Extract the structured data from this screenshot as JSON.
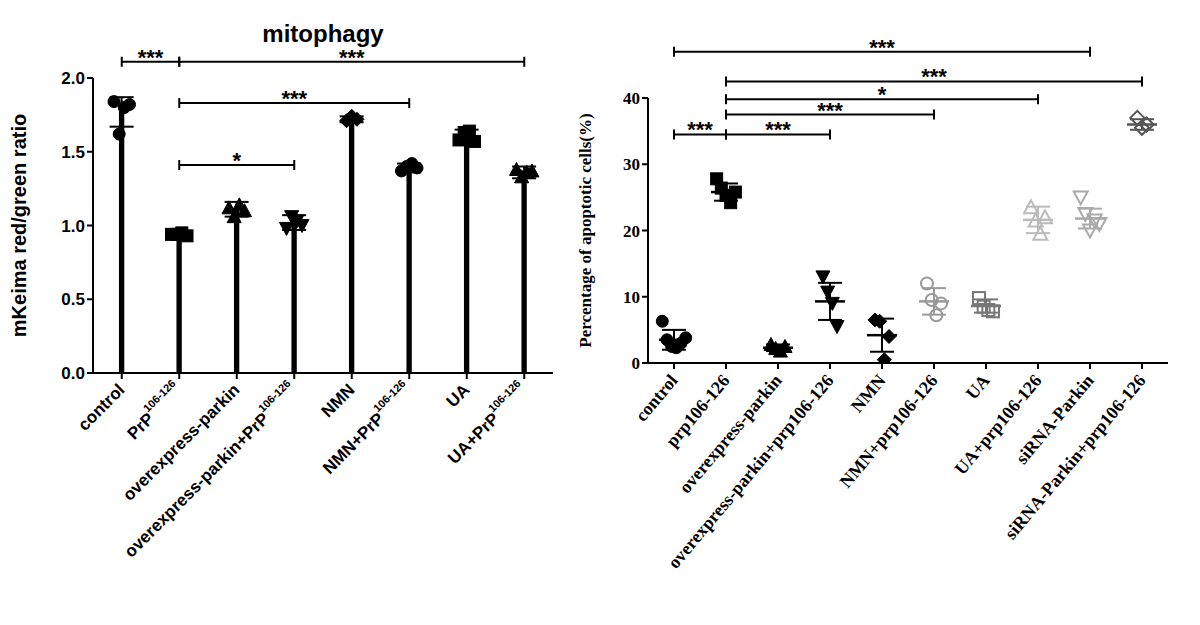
{
  "chart_data": [
    {
      "type": "bar",
      "title": "mitophagy",
      "y_label": "mKeima red/green ratio",
      "categories": [
        "control",
        "PrP106-126",
        "overexpress-parkin",
        "overexpress-parkin+PrP106-126",
        "NMN",
        "NMN+PrP106-126",
        "UA",
        "UA+PrP106-126"
      ],
      "values": [
        1.77,
        0.94,
        1.11,
        1.02,
        1.72,
        1.39,
        1.6,
        1.36
      ],
      "error": [
        0.1,
        0.01,
        0.05,
        0.05,
        0.02,
        0.03,
        0.05,
        0.04
      ],
      "points": [
        [
          1.84,
          1.62,
          1.8,
          1.82
        ],
        [
          0.94,
          0.94,
          0.95,
          0.93
        ],
        [
          1.12,
          1.06,
          1.14,
          1.1
        ],
        [
          0.98,
          1.06,
          1.03,
          1.0
        ],
        [
          1.71,
          1.74,
          1.72
        ],
        [
          1.37,
          1.4,
          1.42,
          1.39
        ],
        [
          1.58,
          1.63,
          1.64,
          1.57
        ],
        [
          1.38,
          1.33,
          1.36,
          1.37
        ]
      ],
      "markers": [
        "circle",
        "square",
        "triangle",
        "triangle-down",
        "diamond",
        "circle",
        "square",
        "triangle"
      ],
      "color": "#000000",
      "ylim": [
        0,
        2
      ],
      "yticks": [
        {
          "value": 0,
          "label": "0.0"
        },
        0.5,
        {
          "value": 1,
          "label": "1.0"
        },
        1.5,
        {
          "value": 2,
          "label": "2.0"
        }
      ],
      "annotations": [
        {
          "from": "control",
          "to": "PrP106-126",
          "y": 2.11,
          "label": "***"
        },
        {
          "from": "PrP106-126",
          "to": "UA+PrP106-126",
          "y": 2.11,
          "label": "***"
        },
        {
          "from": "PrP106-126",
          "to": "NMN+PrP106-126",
          "y": 1.83,
          "label": "***"
        },
        {
          "from": "PrP106-126",
          "to": "overexpress-parkin+PrP106-126",
          "y": 1.41,
          "label": "*"
        }
      ]
    },
    {
      "type": "scatter",
      "y_label": "Percentage of apoptotic cells(%)",
      "categories": [
        "control",
        "prp106-126",
        "overexpress-parkin",
        "overexpress-parkin+prp106-126",
        "NMN",
        "NMN+prp106-126",
        "UA",
        "UA+prp106-126",
        "siRNA-Parkin",
        "siRNA-Parkin+prp106-126"
      ],
      "values": [
        3.5,
        25.8,
        2.3,
        9.3,
        4.2,
        9.3,
        8.6,
        21.6,
        21.8,
        36
      ],
      "error": [
        1.5,
        1.3,
        0.5,
        2.8,
        2.5,
        2,
        1,
        2,
        1.5,
        0.8
      ],
      "points": [
        [
          6.3,
          3.5,
          2.5,
          2.3,
          3.0,
          3.8
        ],
        [
          27.8,
          26.4,
          25.3,
          24.2,
          25.8
        ],
        [
          2.8,
          2.2,
          1.8,
          2.5
        ],
        [
          13,
          10.7,
          9,
          5.5
        ],
        [
          6.5,
          6.3,
          0.5,
          4
        ],
        [
          12,
          9.5,
          7.2,
          9
        ],
        [
          9.8,
          8.5,
          8,
          7.8
        ],
        [
          23.5,
          21.5,
          19.5,
          22
        ],
        [
          25,
          22.5,
          20,
          21.5,
          21
        ],
        [
          37,
          35.5,
          36
        ]
      ],
      "markers": [
        "circle",
        "square",
        "triangle",
        "triangle-down",
        "diamond",
        "open-circle",
        "open-square",
        "open-triangle",
        "open-triangle-down",
        "open-diamond"
      ],
      "colors": [
        "#000000",
        "#000000",
        "#000000",
        "#000000",
        "#000000",
        "#999999",
        "#777777",
        "#bbbbbb",
        "#aaaaaa",
        "#555555"
      ],
      "ylim": [
        0,
        40
      ],
      "yticks": [
        0,
        10,
        20,
        30,
        40
      ],
      "annotations": [
        {
          "from": "control",
          "to": "siRNA-Parkin",
          "y": 47,
          "label": "***"
        },
        {
          "from": "prp106-126",
          "to": "siRNA-Parkin+prp106-126",
          "y": 42.5,
          "label": "***"
        },
        {
          "from": "prp106-126",
          "to": "UA+prp106-126",
          "y": 39.8,
          "label": "*"
        },
        {
          "from": "prp106-126",
          "to": "NMN+prp106-126",
          "y": 37.5,
          "label": "***"
        },
        {
          "from": "prp106-126",
          "to": "overexpress-parkin+prp106-126",
          "y": 34.5,
          "label": "***"
        },
        {
          "from": "control",
          "to": "prp106-126",
          "y": 34.5,
          "label": "***"
        }
      ]
    }
  ]
}
